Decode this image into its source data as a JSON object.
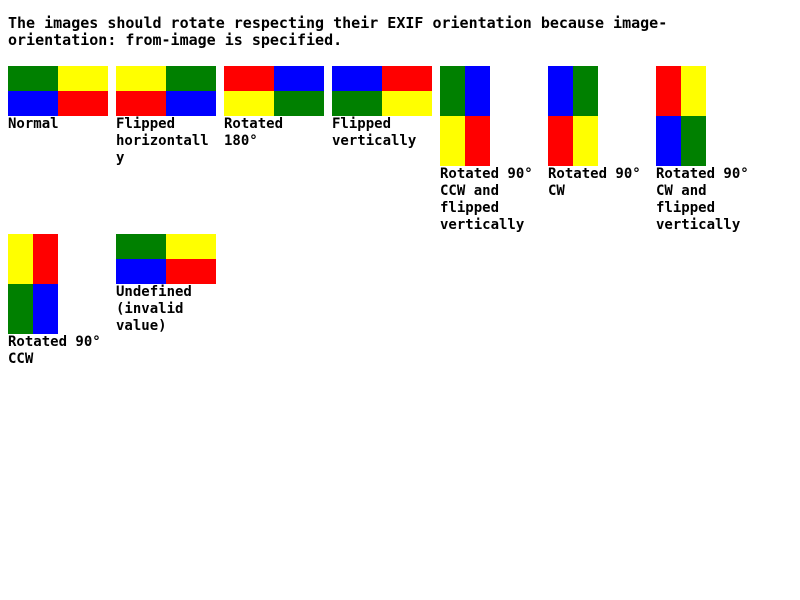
{
  "intro": "The images should rotate respecting their EXIF orientation because image-orientation: from-image is specified.",
  "colors": {
    "green": "#008000",
    "yellow": "#ffff00",
    "blue": "#0000ff",
    "red": "#ff0000"
  },
  "items": [
    {
      "caption": "Normal",
      "shape": "landscape",
      "cells": [
        "green",
        "yellow",
        "blue",
        "red"
      ]
    },
    {
      "caption": "Flipped horizontally",
      "shape": "landscape",
      "cells": [
        "yellow",
        "green",
        "red",
        "blue"
      ]
    },
    {
      "caption": "Rotated 180°",
      "shape": "landscape",
      "cells": [
        "red",
        "blue",
        "yellow",
        "green"
      ]
    },
    {
      "caption": "Flipped vertically",
      "shape": "landscape",
      "cells": [
        "blue",
        "red",
        "green",
        "yellow"
      ]
    },
    {
      "caption": "Rotated 90° CCW and flipped vertically",
      "shape": "portrait",
      "cells": [
        "green",
        "blue",
        "yellow",
        "red"
      ]
    },
    {
      "caption": "Rotated 90° CW",
      "shape": "portrait",
      "cells": [
        "blue",
        "green",
        "red",
        "yellow"
      ]
    },
    {
      "caption": "Rotated 90° CW and flipped vertically",
      "shape": "portrait",
      "cells": [
        "red",
        "yellow",
        "blue",
        "green"
      ]
    },
    {
      "caption": "Rotated 90° CCW",
      "shape": "portrait",
      "cells": [
        "yellow",
        "red",
        "green",
        "blue"
      ]
    },
    {
      "caption": "Undefined (invalid value)",
      "shape": "landscape",
      "cells": [
        "green",
        "yellow",
        "blue",
        "red"
      ]
    }
  ]
}
